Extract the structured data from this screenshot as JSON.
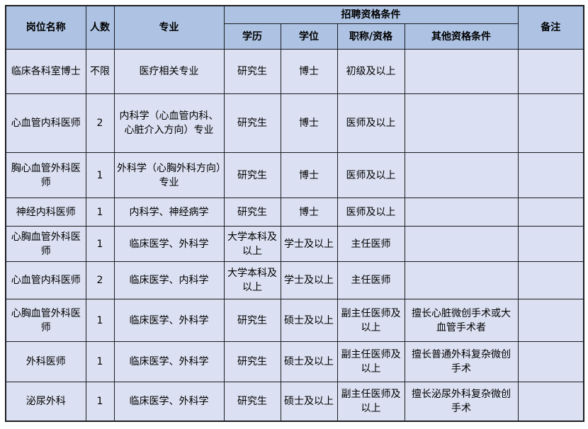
{
  "table": {
    "group_header": "招聘资格条件",
    "headers": {
      "position": "岗位名称",
      "count": "人数",
      "major": "专业",
      "education": "学历",
      "degree": "学位",
      "title": "职称/资格",
      "other": "其他资格条件",
      "remarks": "备注"
    },
    "rows": [
      {
        "position": "临床各科室博士",
        "count": "不限",
        "major": "医疗相关专业",
        "education": "研究生",
        "degree": "博士",
        "title": "初级及以上",
        "other": "",
        "remarks": ""
      },
      {
        "position": "心血管内科医师",
        "count": "2",
        "major": "内科学（心血管内科、心脏介入方向）专业",
        "education": "研究生",
        "degree": "博士",
        "title": "医师及以上",
        "other": "",
        "remarks": ""
      },
      {
        "position": "胸心血管外科医师",
        "count": "1",
        "major": "外科学（心胸外科方向）专业",
        "education": "研究生",
        "degree": "博士",
        "title": "医师及以上",
        "other": "",
        "remarks": ""
      },
      {
        "position": "神经内科医师",
        "count": "1",
        "major": "内科学、神经病学",
        "education": "研究生",
        "degree": "博士",
        "title": "医师及以上",
        "other": "",
        "remarks": ""
      },
      {
        "position": "心胸血管外科医师",
        "count": "1",
        "major": "临床医学、外科学",
        "education": "大学本科及以上",
        "degree": "学士及以上",
        "title": "主任医师",
        "other": "",
        "remarks": ""
      },
      {
        "position": "心血管内科医师",
        "count": "2",
        "major": "临床医学、内科学",
        "education": "大学本科及以上",
        "degree": "学士及以上",
        "title": "主任医师",
        "other": "",
        "remarks": ""
      },
      {
        "position": "心胸血管外科医师",
        "count": "1",
        "major": "临床医学、外科学",
        "education": "研究生",
        "degree": "硕士及以上",
        "title": "副主任医师及以上",
        "other": "擅长心脏微创手术或大血管手术者",
        "remarks": ""
      },
      {
        "position": "外科医师",
        "count": "1",
        "major": "临床医学、外科学",
        "education": "研究生",
        "degree": "硕士及以上",
        "title": "副主任医师及以上",
        "other": "擅长普通外科复杂微创手术",
        "remarks": ""
      },
      {
        "position": "泌尿外科",
        "count": "1",
        "major": "临床医学、外科学",
        "education": "研究生",
        "degree": "硕士及以上",
        "title": "副主任医师及以上",
        "other": "擅长泌尿外科复杂微创手术",
        "remarks": ""
      }
    ],
    "colors": {
      "header_bg": "#aec3e3",
      "body_bg": "#dbe1f2",
      "border": "#1a1c20",
      "page_bg": "#ffffff"
    }
  }
}
